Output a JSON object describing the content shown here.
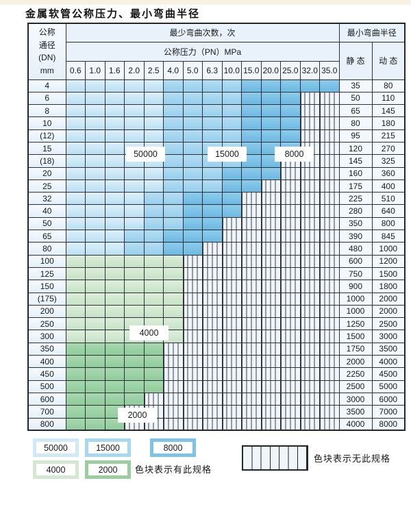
{
  "title": "金属软管公称压力、最小弯曲半径",
  "table": {
    "corner_lines": [
      "公称",
      "通径",
      "(DN)",
      "mm"
    ],
    "cycles_header": "最少弯曲次数，次",
    "pressure_header": "公称压力（PN）MPa",
    "radius_header": "最小弯曲半径",
    "static_label": "静 态",
    "dynamic_label": "动 态",
    "pressure_columns": [
      "0.6",
      "1.0",
      "1.6",
      "2.0",
      "2.5",
      "4.0",
      "5.0",
      "6.3",
      "10.0",
      "15.0",
      "20.0",
      "25.0",
      "32.0",
      "35.0"
    ],
    "zone_legend_meaning": {
      "5": "50000",
      "1": "15000",
      "8": "8000",
      "4": "4000",
      "2": "2000",
      "x": "none"
    },
    "zone_colors": {
      "50000": "#cfe9f8",
      "15000": "#a6d8f0",
      "8000": "#7cc3e8",
      "4000": "#d2e8d0",
      "2000": "#9ace9f"
    },
    "rows": [
      {
        "dn": "4",
        "zones": "55555111188888",
        "static": "35",
        "dynamic": "80"
      },
      {
        "dn": "6",
        "zones": "555551111888xx",
        "static": "50",
        "dynamic": "110"
      },
      {
        "dn": "8",
        "zones": "555551111888xx",
        "static": "65",
        "dynamic": "145"
      },
      {
        "dn": "10",
        "zones": "555551111888xx",
        "static": "80",
        "dynamic": "180"
      },
      {
        "dn": "(12)",
        "zones": "555551111888xx",
        "static": "95",
        "dynamic": "215"
      },
      {
        "dn": "15",
        "zones": "555551111888xx",
        "static": "120",
        "dynamic": "270"
      },
      {
        "dn": "(18)",
        "zones": "55555111188xxx",
        "static": "145",
        "dynamic": "325"
      },
      {
        "dn": "20",
        "zones": "55555111888xxx",
        "static": "160",
        "dynamic": "360"
      },
      {
        "dn": "25",
        "zones": "5555511188xxxx",
        "static": "175",
        "dynamic": "400"
      },
      {
        "dn": "32",
        "zones": "555511888xxxxx",
        "static": "225",
        "dynamic": "510"
      },
      {
        "dn": "40",
        "zones": "555511888xxxxx",
        "static": "280",
        "dynamic": "640"
      },
      {
        "dn": "50",
        "zones": "55551188xxxxxx",
        "static": "350",
        "dynamic": "800"
      },
      {
        "dn": "65",
        "zones": "55511888xxxxxx",
        "static": "390",
        "dynamic": "845"
      },
      {
        "dn": "80",
        "zones": "5551188xxxxxxx",
        "static": "480",
        "dynamic": "1000"
      },
      {
        "dn": "100",
        "zones": "444444xxxxxxxx",
        "static": "600",
        "dynamic": "1200"
      },
      {
        "dn": "125",
        "zones": "444444xxxxxxxx",
        "static": "750",
        "dynamic": "1500"
      },
      {
        "dn": "150",
        "zones": "444444xxxxxxxx",
        "static": "900",
        "dynamic": "1800"
      },
      {
        "dn": "(175)",
        "zones": "444444xxxxxxxx",
        "static": "1000",
        "dynamic": "2000"
      },
      {
        "dn": "200",
        "zones": "444444xxxxxxxx",
        "static": "1000",
        "dynamic": "2000"
      },
      {
        "dn": "250",
        "zones": "444444xxxxxxxx",
        "static": "1250",
        "dynamic": "2500"
      },
      {
        "dn": "300",
        "zones": "444444xxxxxxxx",
        "static": "1500",
        "dynamic": "3000"
      },
      {
        "dn": "350",
        "zones": "22222xxxxxxxxx",
        "static": "1750",
        "dynamic": "3500"
      },
      {
        "dn": "400",
        "zones": "22222xxxxxxxxx",
        "static": "2000",
        "dynamic": "4000"
      },
      {
        "dn": "450",
        "zones": "22222xxxxxxxxx",
        "static": "2250",
        "dynamic": "4500"
      },
      {
        "dn": "500",
        "zones": "22222xxxxxxxxx",
        "static": "2500",
        "dynamic": "5000"
      },
      {
        "dn": "600",
        "zones": "2222xxxxxxxxxx",
        "static": "3000",
        "dynamic": "6000"
      },
      {
        "dn": "700",
        "zones": "222xxxxxxxxxxx",
        "static": "3500",
        "dynamic": "7000"
      },
      {
        "dn": "800",
        "zones": "222xxxxxxxxxxx",
        "static": "4000",
        "dynamic": "8000"
      }
    ]
  },
  "overlay_labels": {
    "cycles_50000": "50000",
    "cycles_15000": "15000",
    "cycles_8000": "8000",
    "cycles_4000": "4000",
    "cycles_2000": "2000"
  },
  "legend": {
    "items": [
      {
        "value": "50000",
        "color": "#cfe9f8"
      },
      {
        "value": "15000",
        "color": "#a6d8f0"
      },
      {
        "value": "8000",
        "color": "#7cc3e8"
      },
      {
        "value": "4000",
        "color": "#d2e8d0"
      },
      {
        "value": "2000",
        "color": "#9ace9f"
      }
    ],
    "has_spec_text": "色块表示有此规格",
    "no_spec_text": "色块表示无此规格"
  }
}
